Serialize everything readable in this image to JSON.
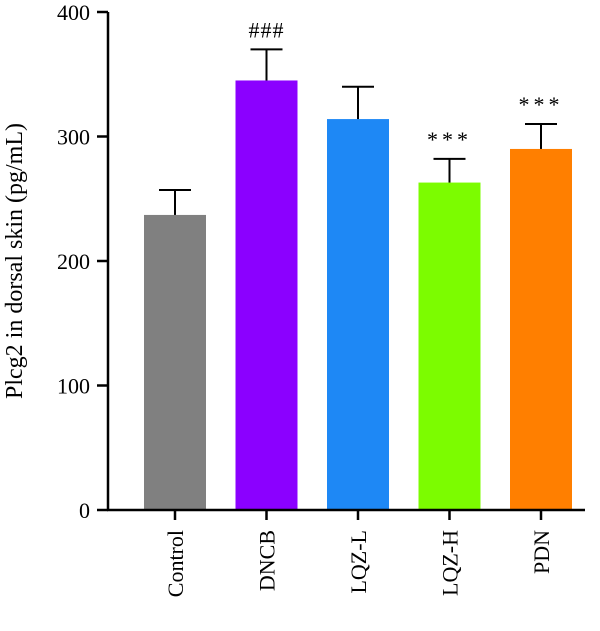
{
  "chart_data": {
    "type": "bar",
    "ylabel": "Plcg2 in dorsal skin (pg/mL)",
    "xlabel": "",
    "ylim": [
      0,
      400
    ],
    "yticks": [
      0,
      100,
      200,
      300,
      400
    ],
    "categories": [
      "Control",
      "DNCB",
      "LQZ-L",
      "LQZ-H",
      "PDN"
    ],
    "values": [
      237,
      345,
      314,
      263,
      290
    ],
    "errors": [
      20,
      25,
      26,
      19,
      20
    ],
    "colors": [
      "#808080",
      "#8b00ff",
      "#1e88f5",
      "#7cfc00",
      "#ff7f00"
    ],
    "annotations": [
      "",
      "###",
      "",
      "***",
      "***"
    ],
    "grid": false,
    "legend": "none"
  }
}
